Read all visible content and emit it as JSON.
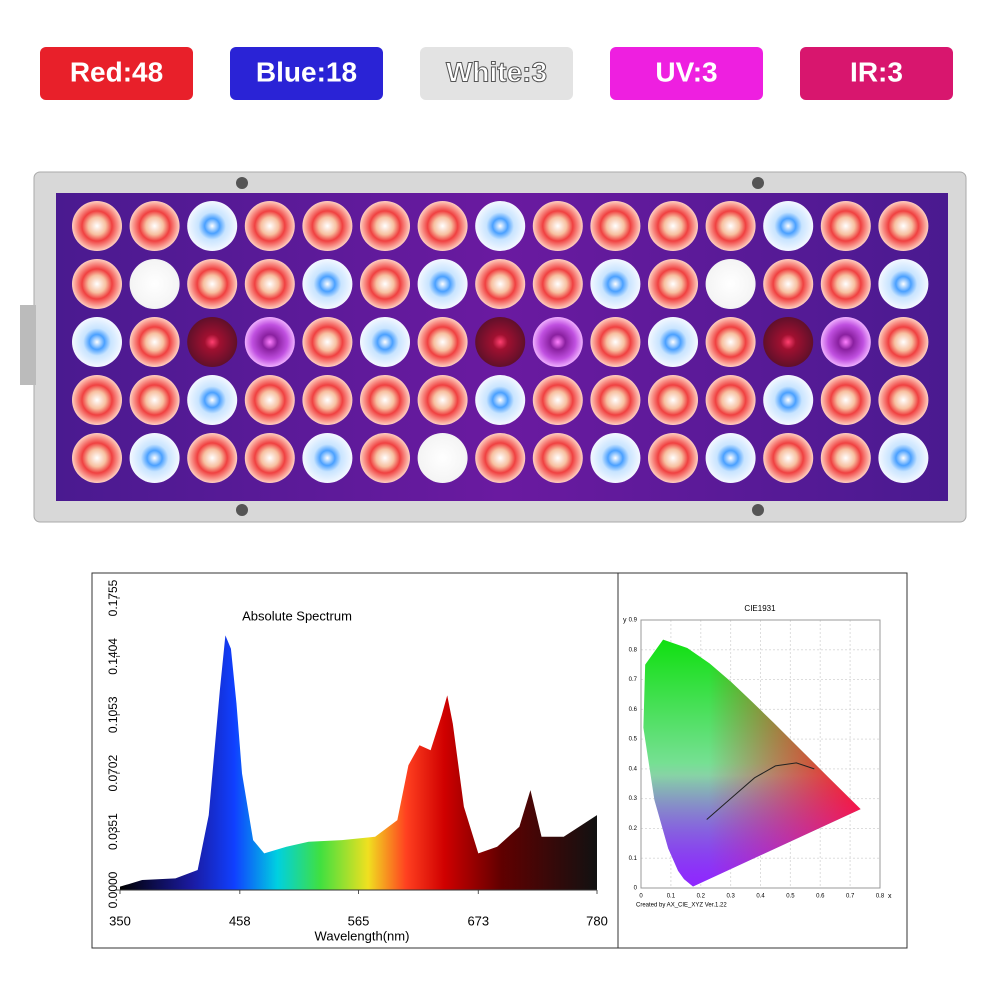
{
  "badges": [
    {
      "label": "Red:48",
      "color": "#e8202a",
      "text_color": "#ffffff"
    },
    {
      "label": "Blue:18",
      "color": "#2a23d6",
      "text_color": "#ffffff"
    },
    {
      "label": "White:3",
      "color": "#e3e3e3",
      "text_color": "#ffffff"
    },
    {
      "label": "UV:3",
      "color": "#ee1fe0",
      "text_color": "#ffffff"
    },
    {
      "label": "IR:3",
      "color": "#d8166e",
      "text_color": "#ffffff"
    }
  ],
  "chart_data": [
    {
      "type": "area",
      "title": "Absolute Spectrum",
      "x_label": "Wavelength(nm)",
      "x": [
        350,
        370,
        400,
        420,
        430,
        440,
        445,
        450,
        455,
        460,
        470,
        480,
        500,
        520,
        550,
        580,
        600,
        610,
        620,
        630,
        640,
        645,
        650,
        660,
        673,
        690,
        710,
        720,
        730,
        750,
        780
      ],
      "values": [
        0.002,
        0.006,
        0.007,
        0.012,
        0.045,
        0.12,
        0.153,
        0.145,
        0.112,
        0.07,
        0.03,
        0.022,
        0.026,
        0.029,
        0.03,
        0.032,
        0.042,
        0.075,
        0.087,
        0.084,
        0.105,
        0.117,
        0.1,
        0.05,
        0.022,
        0.026,
        0.038,
        0.06,
        0.032,
        0.032,
        0.045
      ],
      "xlim": [
        350,
        780
      ],
      "xticks": [
        350,
        458,
        565,
        673,
        780
      ],
      "ylim": [
        0,
        0.1755
      ],
      "yticks": [
        {
          "value": 0,
          "label": "0.0000"
        },
        {
          "value": 0.0351,
          "label": "0.0351"
        },
        {
          "value": 0.0702,
          "label": "0.0702"
        },
        {
          "value": 0.1053,
          "label": "0.1053"
        },
        {
          "value": 0.1404,
          "label": "0.1404"
        },
        {
          "value": 0.1755,
          "label": "0.1755"
        }
      ]
    },
    {
      "type": "cie",
      "title": "CIE1931",
      "x_label": "x",
      "y_label": "y",
      "caption": "Created by AX_CIE_XYZ Ver.1.22",
      "xlim": [
        0,
        0.8
      ],
      "ylim": [
        0,
        0.9
      ],
      "xticks": [
        0,
        0.1,
        0.2,
        0.3,
        0.4,
        0.5,
        0.6,
        0.7,
        0.8
      ],
      "yticks": [
        0,
        0.1,
        0.2,
        0.3,
        0.4,
        0.5,
        0.6,
        0.7,
        0.8,
        0.9
      ],
      "grid": true
    }
  ]
}
